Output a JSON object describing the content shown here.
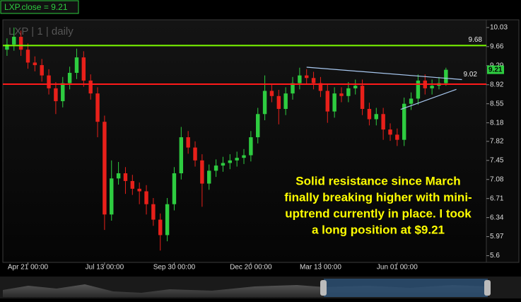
{
  "chart_data": {
    "type": "candlestick",
    "title": "LXP.close = 9.21",
    "subtitle": "LXP | 1 | daily",
    "categories": [
      null,
      null,
      null,
      "Apr 21 00:00",
      null,
      null,
      null,
      null,
      null,
      null,
      null,
      null,
      null,
      null,
      "Jul 13 00:00",
      null,
      null,
      null,
      null,
      null,
      null,
      null,
      null,
      null,
      "Sep 30 00:00",
      null,
      null,
      null,
      null,
      null,
      null,
      null,
      null,
      null,
      null,
      "Dec 20 00:00",
      null,
      null,
      null,
      null,
      null,
      null,
      null,
      null,
      null,
      "Mar 13 00:00",
      null,
      null,
      null,
      null,
      null,
      null,
      null,
      null,
      null,
      null,
      "Jun 01 00:00",
      null,
      null,
      null,
      null,
      null,
      null,
      null
    ],
    "open": [
      9.6,
      9.7,
      9.85,
      9.6,
      9.35,
      9.3,
      9.1,
      8.85,
      8.6,
      8.95,
      9.15,
      9.45,
      9.0,
      8.75,
      8.2,
      6.4,
      7.1,
      7.2,
      7.05,
      6.9,
      6.85,
      6.6,
      6.3,
      6.0,
      6.6,
      7.2,
      7.9,
      7.7,
      7.45,
      7.0,
      7.25,
      7.35,
      7.4,
      7.45,
      7.5,
      7.55,
      7.9,
      8.35,
      8.8,
      8.7,
      8.45,
      8.75,
      8.95,
      9.1,
      9.05,
      8.95,
      8.8,
      8.4,
      8.75,
      8.7,
      8.85,
      8.9,
      8.45,
      8.25,
      8.35,
      8.05,
      7.95,
      7.85,
      8.55,
      8.65,
      9.0,
      8.85,
      8.9,
      8.95
    ],
    "high": [
      9.82,
      10.03,
      9.97,
      9.72,
      9.47,
      9.42,
      9.22,
      8.97,
      9.07,
      9.27,
      9.62,
      9.57,
      9.12,
      8.87,
      8.32,
      7.45,
      7.42,
      7.32,
      7.17,
      7.02,
      6.97,
      6.72,
      6.42,
      6.72,
      7.32,
      8.1,
      8.02,
      7.82,
      7.57,
      7.37,
      7.47,
      7.52,
      7.57,
      7.62,
      7.67,
      8.02,
      8.47,
      9.1,
      8.92,
      8.82,
      8.87,
      9.07,
      9.25,
      9.22,
      9.17,
      9.07,
      8.92,
      8.87,
      8.87,
      8.97,
      9.02,
      9.02,
      8.57,
      8.47,
      8.47,
      8.17,
      8.07,
      8.67,
      8.77,
      9.12,
      9.12,
      9.02,
      9.07,
      9.25
    ],
    "low": [
      9.48,
      9.58,
      9.48,
      9.23,
      9.18,
      8.98,
      8.73,
      8.35,
      8.48,
      8.83,
      9.03,
      8.88,
      8.63,
      7.9,
      6.1,
      6.28,
      6.98,
      6.8,
      6.78,
      6.6,
      6.4,
      6.18,
      5.7,
      5.88,
      6.48,
      7.08,
      7.58,
      7.33,
      6.55,
      6.88,
      7.13,
      7.23,
      7.28,
      7.33,
      7.38,
      7.43,
      7.78,
      8.23,
      8.58,
      8.15,
      8.33,
      8.63,
      8.83,
      8.93,
      8.83,
      8.68,
      8.18,
      8.28,
      8.58,
      8.58,
      8.73,
      8.33,
      8.13,
      8.13,
      7.85,
      7.83,
      7.73,
      7.73,
      8.43,
      8.53,
      8.73,
      8.73,
      8.83,
      8.9
    ],
    "close": [
      9.7,
      9.85,
      9.6,
      9.35,
      9.3,
      9.1,
      8.85,
      8.6,
      8.95,
      9.15,
      9.45,
      9.0,
      8.75,
      8.2,
      6.4,
      7.1,
      7.2,
      7.05,
      6.9,
      6.85,
      6.6,
      6.3,
      6.0,
      6.6,
      7.2,
      7.9,
      7.7,
      7.45,
      7.0,
      7.25,
      7.35,
      7.4,
      7.45,
      7.5,
      7.55,
      7.9,
      8.35,
      8.8,
      8.7,
      8.45,
      8.75,
      8.95,
      9.1,
      9.05,
      8.95,
      8.8,
      8.4,
      8.75,
      8.7,
      8.85,
      8.9,
      8.45,
      8.25,
      8.35,
      8.05,
      7.95,
      7.85,
      8.55,
      8.65,
      9.0,
      8.85,
      8.9,
      8.95,
      9.21
    ],
    "up_color": "#2ecc40",
    "down_color": "#e8201a",
    "ylim": [
      5.47,
      10.18
    ],
    "yticks": [
      10.03,
      9.66,
      9.29,
      8.92,
      8.55,
      8.18,
      7.82,
      7.45,
      7.08,
      6.71,
      6.34,
      5.97,
      5.6
    ],
    "xlim": [
      -0.6,
      68.8
    ],
    "levels": [
      {
        "value": 9.68,
        "color": "#7cfc00",
        "show_label": true
      },
      {
        "value": 8.93,
        "color": "#ff1a1a",
        "show_label": false
      }
    ],
    "trendlines": [
      {
        "x": [
          43,
          65.3
        ],
        "values": [
          9.26,
          9.02
        ],
        "color": "#a8c8f0",
        "show_end_label": true
      },
      {
        "x": [
          56.5,
          64.5
        ],
        "values": [
          8.44,
          8.83
        ],
        "color": "#a8c8f0",
        "show_end_label": false
      }
    ],
    "last_price_color": "#2ecc40",
    "annotation": [
      "Solid resistance since March",
      "finally breaking higher with mini-",
      "uptrend currently in place. I took",
      "a long position at $9.21"
    ]
  }
}
